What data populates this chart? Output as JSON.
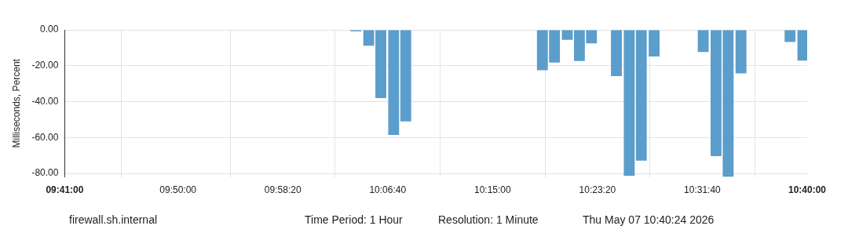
{
  "chart_data": {
    "type": "bar",
    "ylabel": "Milliseconds, Percent",
    "x": [
      10.069,
      10.086,
      10.102,
      10.119,
      10.135,
      10.316,
      10.332,
      10.349,
      10.365,
      10.381,
      10.414,
      10.431,
      10.447,
      10.464,
      10.529,
      10.546,
      10.562,
      10.579,
      10.644,
      10.661
    ],
    "values": [
      -0.9,
      -8.8,
      -38,
      -58.6,
      -51,
      -22.5,
      -18.3,
      -5.6,
      -17.4,
      -7.5,
      -25.8,
      -81.3,
      -72.9,
      -14.9,
      -12.4,
      -70.4,
      -82,
      -24.3,
      -6.8,
      -17.2
    ],
    "color": "#5b9dcb",
    "xlim": [
      9.68333,
      10.66667
    ],
    "xticks": [
      {
        "value": 9.68333,
        "label": "09:41:00"
      },
      {
        "value": 9.83333,
        "label": "09:50:00"
      },
      {
        "value": 9.97222,
        "label": "09:58:20"
      },
      {
        "value": 10.11111,
        "label": "10:06:40"
      },
      {
        "value": 10.25,
        "label": "10:15:00"
      },
      {
        "value": 10.38889,
        "label": "10:23:20"
      },
      {
        "value": 10.52778,
        "label": "10:31:40"
      },
      {
        "value": 10.66667,
        "label": "10:40:00"
      }
    ],
    "ylim": [
      -82,
      0
    ],
    "yticks": [
      {
        "value": 0,
        "label": "0.00"
      },
      {
        "value": -20,
        "label": "-20.00"
      },
      {
        "value": -40,
        "label": "-40.00"
      },
      {
        "value": -60,
        "label": "-60.00"
      },
      {
        "value": -80,
        "label": "-80.00"
      }
    ],
    "grid": true,
    "legend": false,
    "annotations": [
      "firewall.sh.internal",
      "Time Period: 1 Hour",
      "Resolution: 1 Minute",
      "Thu May 07 10:40:24 2026"
    ]
  }
}
